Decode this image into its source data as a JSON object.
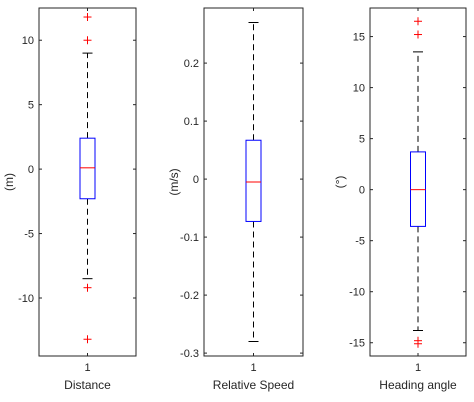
{
  "chart_data": [
    {
      "type": "boxplot",
      "xlabel": "Distance",
      "ylabel": "(m)",
      "ylim": [
        -14.5,
        12.5
      ],
      "yticks": [
        -10,
        -5,
        0,
        5,
        10
      ],
      "ytick_labels": [
        "-10",
        "-5",
        "0",
        "5",
        "10"
      ],
      "categories": [
        "1"
      ],
      "box": {
        "q1": -2.3,
        "median": 0.1,
        "q3": 2.4,
        "whisker_low": -8.5,
        "whisker_high": 9.0
      },
      "outliers": [
        11.8,
        10.0,
        -9.2,
        -13.2
      ]
    },
    {
      "type": "boxplot",
      "xlabel": "Relative Speed",
      "ylabel": "(m/s)",
      "ylim": [
        -0.305,
        0.295
      ],
      "yticks": [
        -0.3,
        -0.2,
        -0.1,
        0,
        0.1,
        0.2
      ],
      "ytick_labels": [
        "-0.3",
        "-0.2",
        "-0.1",
        "0",
        "0.1",
        "0.2"
      ],
      "categories": [
        "1"
      ],
      "box": {
        "q1": -0.073,
        "median": -0.005,
        "q3": 0.067,
        "whisker_low": -0.28,
        "whisker_high": 0.27
      },
      "outliers": []
    },
    {
      "type": "boxplot",
      "xlabel": "Heading angle",
      "ylabel": "(°)",
      "ylim": [
        -16.3,
        17.8
      ],
      "yticks": [
        -15,
        -10,
        -5,
        0,
        5,
        10,
        15
      ],
      "ytick_labels": [
        "-15",
        "-10",
        "-5",
        "0",
        "5",
        "10",
        "15"
      ],
      "categories": [
        "1"
      ],
      "box": {
        "q1": -3.6,
        "median": 0.0,
        "q3": 3.7,
        "whisker_low": -13.8,
        "whisker_high": 13.5
      },
      "outliers": [
        16.5,
        15.2,
        -14.8,
        -15.1
      ]
    }
  ],
  "colors": {
    "box": "#0000ff",
    "median": "#ff0000",
    "outlier": "#ff0000",
    "whisker": "#000000",
    "axis": "#262626"
  }
}
